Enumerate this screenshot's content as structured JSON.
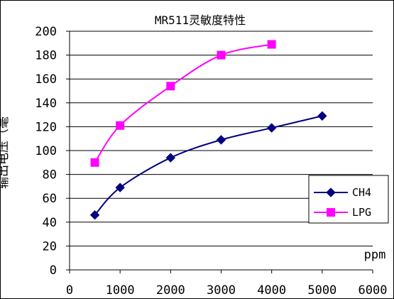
{
  "chart_data": {
    "type": "line",
    "title": "MR511灵敏度特性",
    "xlabel": "ppm",
    "ylabel_partial": "输出电压（毫",
    "xlim": [
      0,
      6000
    ],
    "ylim": [
      0,
      200
    ],
    "x_ticks": [
      0,
      1000,
      2000,
      3000,
      4000,
      5000,
      6000
    ],
    "y_ticks": [
      0,
      20,
      40,
      60,
      80,
      100,
      120,
      140,
      160,
      180,
      200
    ],
    "grid": "horizontal",
    "legend_position": "right",
    "series": [
      {
        "name": "CH4",
        "color": "#000080",
        "marker": "diamond",
        "x": [
          500,
          1000,
          2000,
          3000,
          4000,
          5000
        ],
        "y": [
          46,
          69,
          94,
          109,
          119,
          129
        ]
      },
      {
        "name": "LPG",
        "color": "#ff00ff",
        "marker": "square",
        "x": [
          500,
          1000,
          2000,
          3000,
          4000
        ],
        "y": [
          90,
          121,
          154,
          180,
          189
        ]
      }
    ]
  }
}
